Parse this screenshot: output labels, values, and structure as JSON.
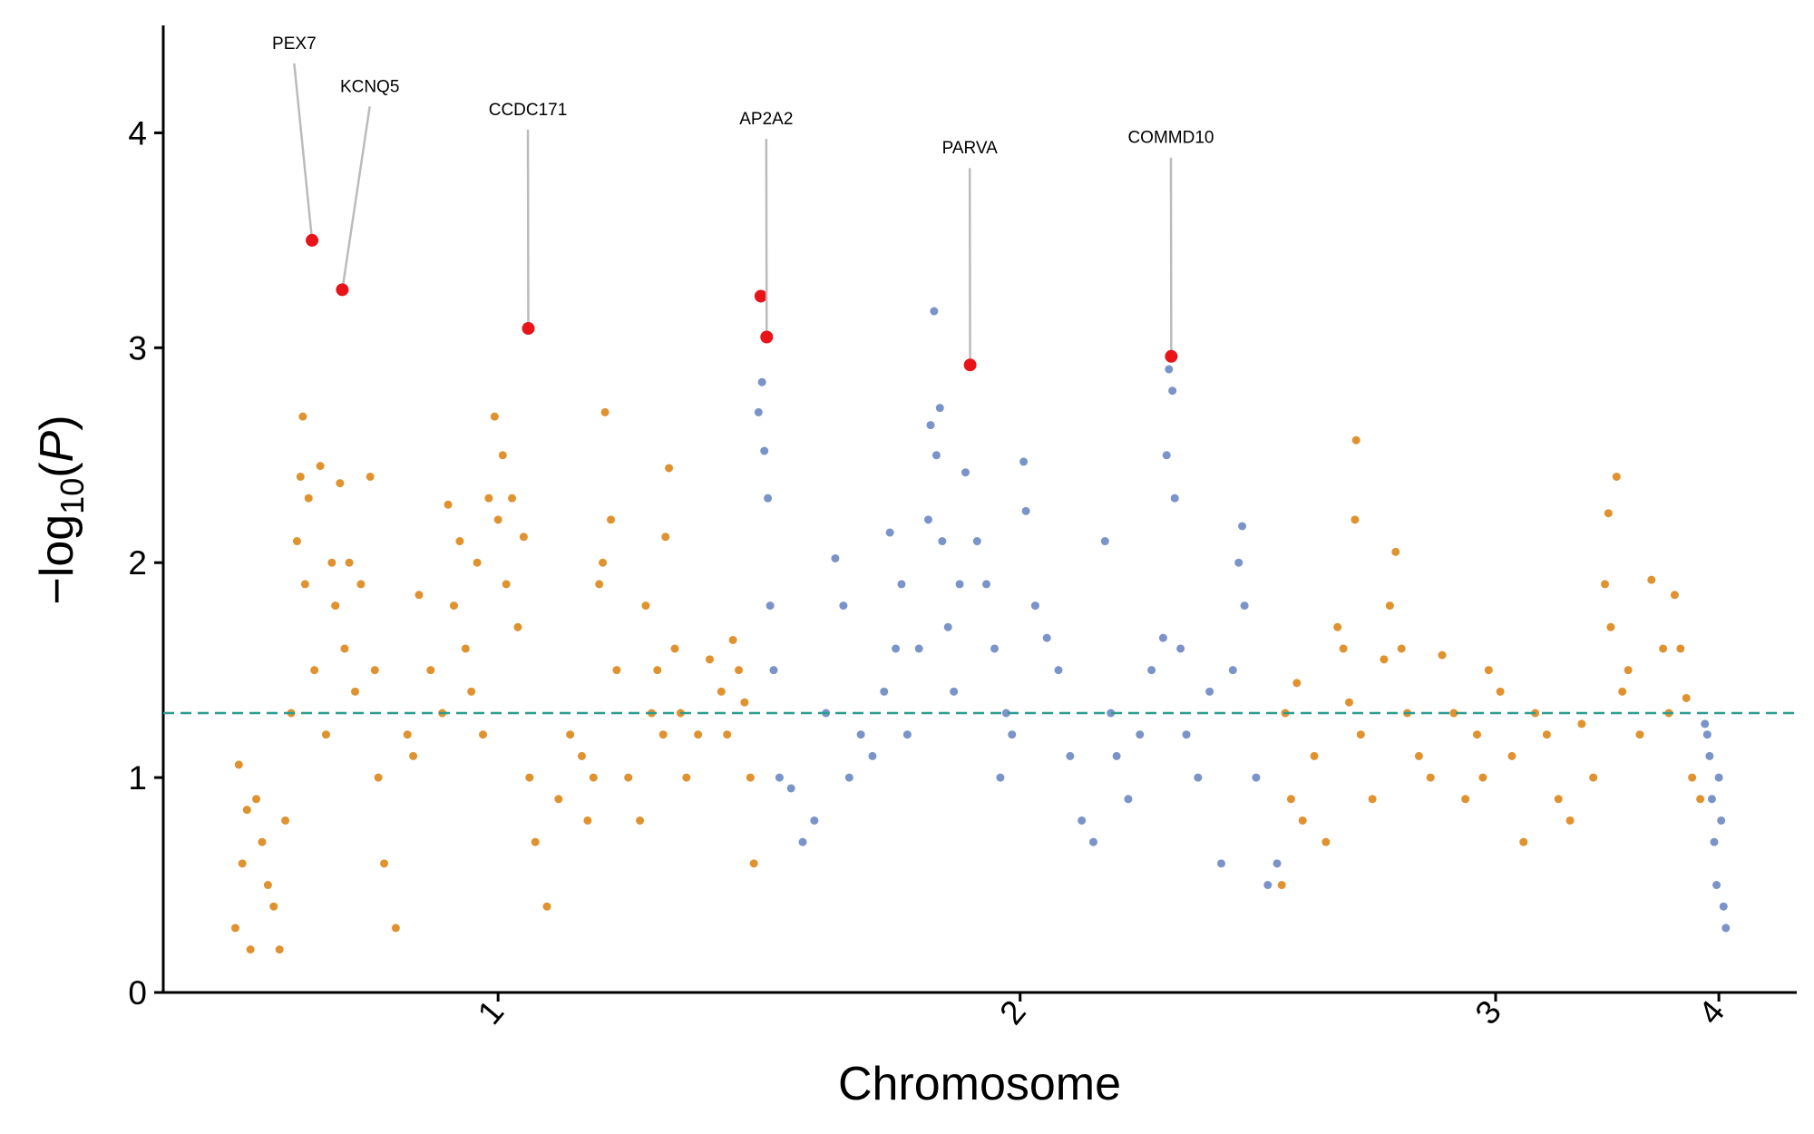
{
  "chart_data": {
    "type": "scatter",
    "xlabel": "Chromosome",
    "ylabel": [
      "−log",
      "10",
      "(",
      "P",
      ")"
    ],
    "xlim": [
      -60,
      1345
    ],
    "ylim": [
      0,
      4.5
    ],
    "xticks": [
      {
        "value": 228,
        "label": "1"
      },
      {
        "value": 677,
        "label": "2"
      },
      {
        "value": 1086,
        "label": "3"
      },
      {
        "value": 1278,
        "label": "4"
      }
    ],
    "yticks": [
      0,
      1,
      2,
      3,
      4
    ],
    "threshold": 1.3,
    "threshold_color": "#2a9d8f",
    "series": [
      {
        "color": "#e0922f",
        "x": [
          2,
          5,
          8,
          12,
          15,
          20,
          25,
          30,
          35,
          40,
          45,
          50,
          55,
          58,
          60,
          62,
          65,
          70,
          75,
          80,
          85,
          88,
          92,
          96,
          100,
          105,
          110,
          118,
          122,
          125,
          130,
          140,
          150,
          155,
          160,
          170,
          180,
          185,
          190,
          195,
          200,
          205,
          210,
          215,
          220,
          225,
          228,
          232,
          235,
          240,
          245,
          250,
          255,
          260,
          270,
          280,
          290,
          300,
          305,
          310,
          315,
          318,
          320,
          325,
          330,
          340,
          350,
          355,
          360,
          365,
          370,
          372,
          375,
          380,
          385,
          390,
          400,
          410,
          420,
          425,
          430,
          435,
          440,
          445,
          448
        ],
        "values": [
          0.3,
          1.06,
          0.6,
          0.85,
          0.2,
          0.9,
          0.7,
          0.5,
          0.4,
          0.2,
          0.8,
          1.3,
          2.1,
          2.4,
          2.68,
          1.9,
          2.3,
          1.5,
          2.45,
          1.2,
          2.0,
          1.8,
          2.37,
          1.6,
          2.0,
          1.4,
          1.9,
          2.4,
          1.5,
          1.0,
          0.6,
          0.3,
          1.2,
          1.1,
          1.85,
          1.5,
          1.3,
          2.27,
          1.8,
          2.1,
          1.6,
          1.4,
          2.0,
          1.2,
          2.3,
          2.68,
          2.2,
          2.5,
          1.9,
          2.3,
          1.7,
          2.12,
          1.0,
          0.7,
          0.4,
          0.9,
          1.2,
          1.1,
          0.8,
          1.0,
          1.9,
          2.0,
          2.7,
          2.2,
          1.5,
          1.0,
          0.8,
          1.8,
          1.3,
          1.5,
          1.2,
          2.12,
          2.44,
          1.6,
          1.3,
          1.0,
          1.2,
          1.55,
          1.4,
          1.2,
          1.64,
          1.5,
          1.35,
          1.0,
          0.6
        ]
      },
      {
        "color": "#7a93c9",
        "x": [
          452,
          455,
          457,
          460,
          462,
          465,
          470,
          480,
          490,
          500,
          510,
          518,
          525,
          530,
          540,
          550,
          560,
          565,
          570,
          575,
          580,
          590,
          598,
          600,
          603,
          605,
          608,
          610,
          615,
          620,
          625,
          630,
          640,
          648,
          655,
          660,
          665,
          670,
          680,
          682,
          690,
          700,
          710,
          720,
          730,
          740,
          750,
          755,
          760,
          770,
          780,
          790,
          800,
          803,
          805,
          808,
          810,
          815,
          820,
          830,
          840,
          850,
          860,
          865,
          868,
          870,
          880,
          890,
          898
        ],
        "values": [
          2.7,
          2.84,
          2.52,
          2.3,
          1.8,
          1.5,
          1.0,
          0.95,
          0.7,
          0.8,
          1.3,
          2.02,
          1.8,
          1.0,
          1.2,
          1.1,
          1.4,
          2.14,
          1.6,
          1.9,
          1.2,
          1.6,
          2.2,
          2.64,
          3.17,
          2.5,
          2.72,
          2.1,
          1.7,
          1.4,
          1.9,
          2.42,
          2.1,
          1.9,
          1.6,
          1.0,
          1.3,
          1.2,
          2.47,
          2.24,
          1.8,
          1.65,
          1.5,
          1.1,
          0.8,
          0.7,
          2.1,
          1.3,
          1.1,
          0.9,
          1.2,
          1.5,
          1.65,
          2.5,
          2.9,
          2.8,
          2.3,
          1.6,
          1.2,
          1.0,
          1.4,
          0.6,
          1.5,
          2.0,
          2.17,
          1.8,
          1.0,
          0.5,
          0.6
        ]
      },
      {
        "color": "#e0922f",
        "x": [
          902,
          905,
          910,
          915,
          920,
          930,
          940,
          950,
          955,
          960,
          965,
          966,
          970,
          980,
          990,
          995,
          1000,
          1005,
          1010,
          1020,
          1030,
          1040,
          1050,
          1060,
          1070,
          1075,
          1080,
          1090,
          1100,
          1110,
          1120,
          1130,
          1140,
          1150,
          1160,
          1170,
          1180,
          1183,
          1185,
          1190,
          1195,
          1200,
          1210,
          1220,
          1230,
          1235,
          1240,
          1245,
          1250,
          1255,
          1262
        ],
        "values": [
          0.5,
          1.3,
          0.9,
          1.44,
          0.8,
          1.1,
          0.7,
          1.7,
          1.6,
          1.35,
          2.2,
          2.57,
          1.2,
          0.9,
          1.55,
          1.8,
          2.05,
          1.6,
          1.3,
          1.1,
          1.0,
          1.57,
          1.3,
          0.9,
          1.2,
          1.0,
          1.5,
          1.4,
          1.1,
          0.7,
          1.3,
          1.2,
          0.9,
          0.8,
          1.25,
          1.0,
          1.9,
          2.23,
          1.7,
          2.4,
          1.4,
          1.5,
          1.2,
          1.92,
          1.6,
          1.3,
          1.85,
          1.6,
          1.37,
          1.0,
          0.9
        ]
      },
      {
        "color": "#7a93c9",
        "x": [
          1266,
          1268,
          1270,
          1272,
          1274,
          1276,
          1278,
          1280,
          1282,
          1284
        ],
        "values": [
          1.25,
          1.2,
          1.1,
          0.9,
          0.7,
          0.5,
          1.0,
          0.8,
          0.4,
          0.3
        ]
      }
    ],
    "highlights": {
      "color": "#e8141a",
      "points": [
        {
          "x": 68,
          "value": 3.5,
          "label": "PEX7"
        },
        {
          "x": 94,
          "value": 3.27,
          "label": "KCNQ5"
        },
        {
          "x": 254,
          "value": 3.09,
          "label": "CCDC171"
        },
        {
          "x": 454,
          "value": 3.24
        },
        {
          "x": 459,
          "value": 3.05,
          "label": "AP2A2"
        },
        {
          "x": 634,
          "value": 2.92,
          "label": "PARVA"
        },
        {
          "x": 807,
          "value": 2.96,
          "label": "COMMD10"
        }
      ]
    }
  }
}
